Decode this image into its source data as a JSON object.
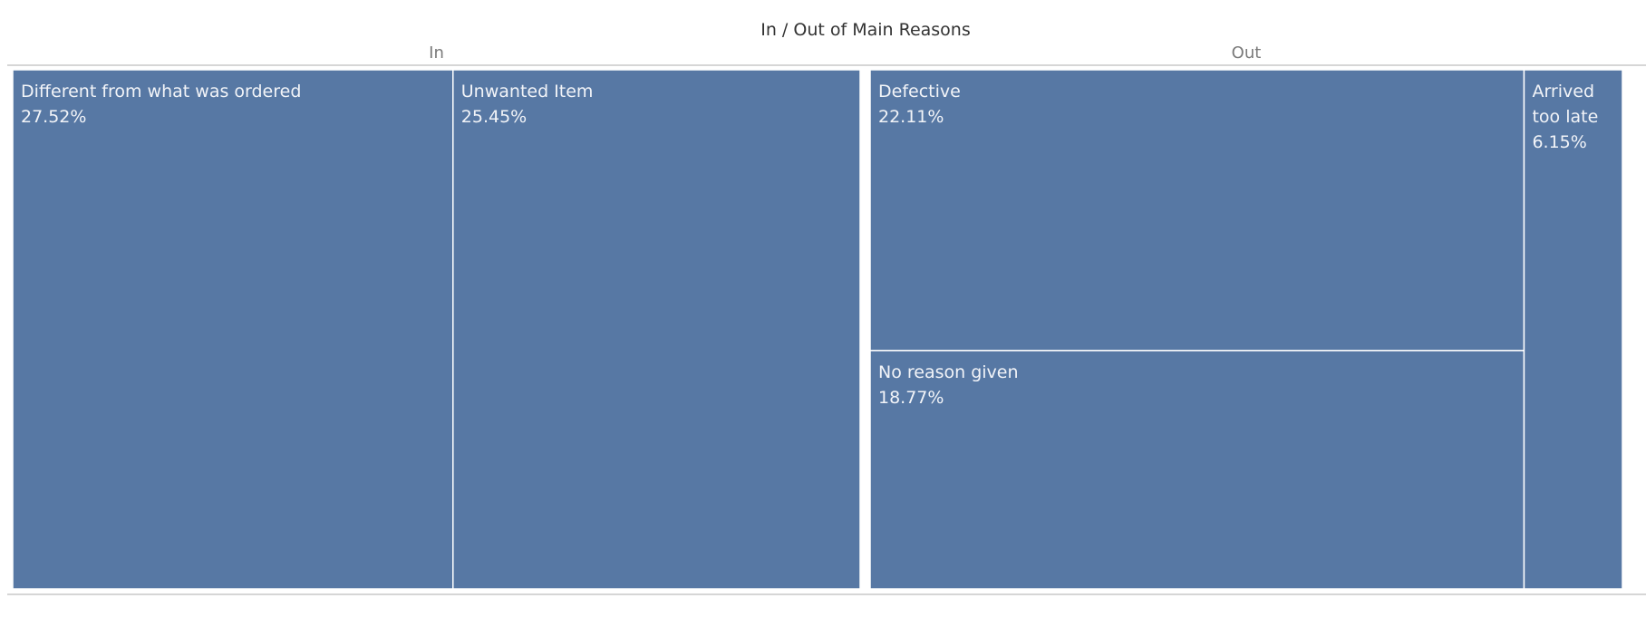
{
  "chart_data": {
    "type": "treemap",
    "title": "In / Out of Main Reasons",
    "color": "#5778a4",
    "divider_color": "#ffffff",
    "groups": [
      {
        "name": "In",
        "items": [
          {
            "label": "Different from what was ordered",
            "value": 27.52,
            "display": "27.52%"
          },
          {
            "label": "Unwanted Item",
            "value": 25.45,
            "display": "25.45%"
          }
        ]
      },
      {
        "name": "Out",
        "items": [
          {
            "label": "Defective",
            "value": 22.11,
            "display": "22.11%"
          },
          {
            "label": "No reason given",
            "value": 18.77,
            "display": "18.77%"
          },
          {
            "label": "Arrived too late",
            "value": 6.15,
            "display": "6.15%"
          }
        ]
      }
    ]
  }
}
